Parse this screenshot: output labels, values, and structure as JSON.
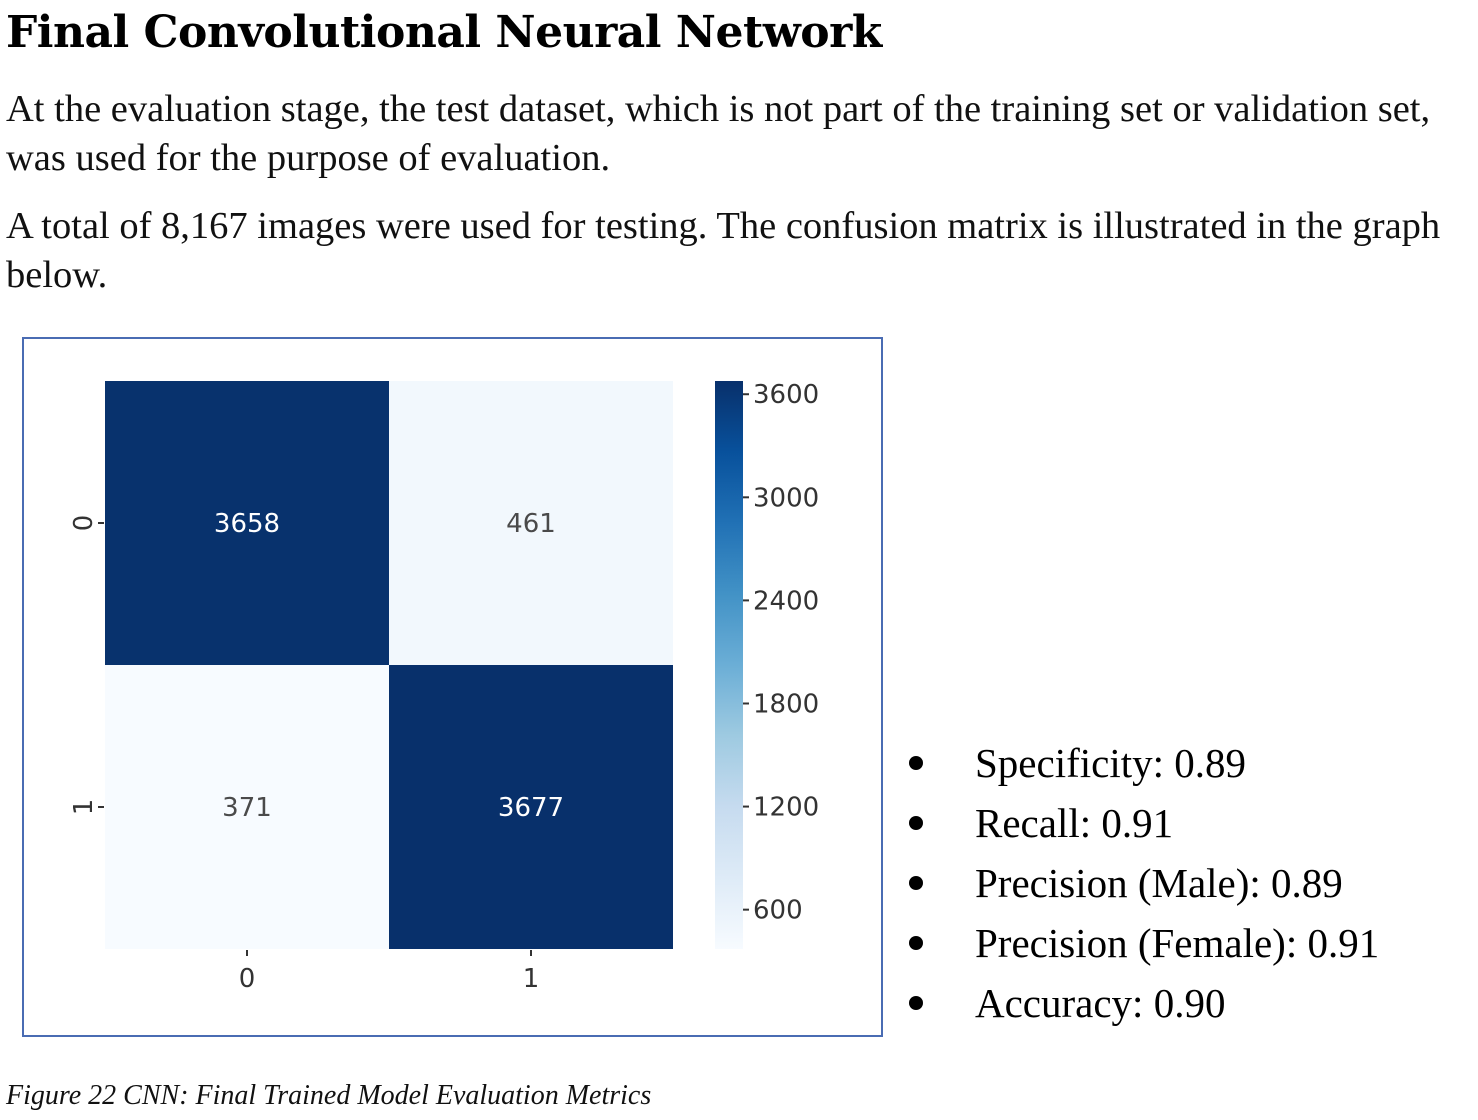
{
  "document": {
    "title": "Final Convolutional Neural Network",
    "paragraphs": [
      "At the evaluation stage, the test dataset, which is not part of the training set or validation set, was used for the purpose of evaluation.",
      "A total of 8,167 images were used for testing. The confusion matrix is illustrated in the graph below."
    ],
    "metrics": [
      "Specificity: 0.89",
      "Recall: 0.91",
      "Precision (Male): 0.89",
      "Precision (Female): 0.91",
      "Accuracy: 0.90"
    ],
    "caption": "Figure 22 CNN: Final Trained Model Evaluation Metrics"
  },
  "chart_data": {
    "type": "heatmap",
    "row_labels": [
      "0",
      "1"
    ],
    "col_labels": [
      "0",
      "1"
    ],
    "values": [
      [
        3658,
        461
      ],
      [
        371,
        3677
      ]
    ],
    "colorbar": {
      "ticks": [
        3600,
        3000,
        2400,
        1800,
        1200,
        600
      ],
      "range": [
        371,
        3677
      ],
      "colormap": "Blues",
      "colors": [
        "#f7fbff",
        "#deebf7",
        "#c6dbef",
        "#9ecae1",
        "#6baed6",
        "#4292c6",
        "#2171b5",
        "#08519c",
        "#08306b"
      ]
    },
    "annotation_colors": {
      "dark_cell": "#ffffff",
      "light_cell": "#4a4a4a"
    },
    "grid": false
  }
}
